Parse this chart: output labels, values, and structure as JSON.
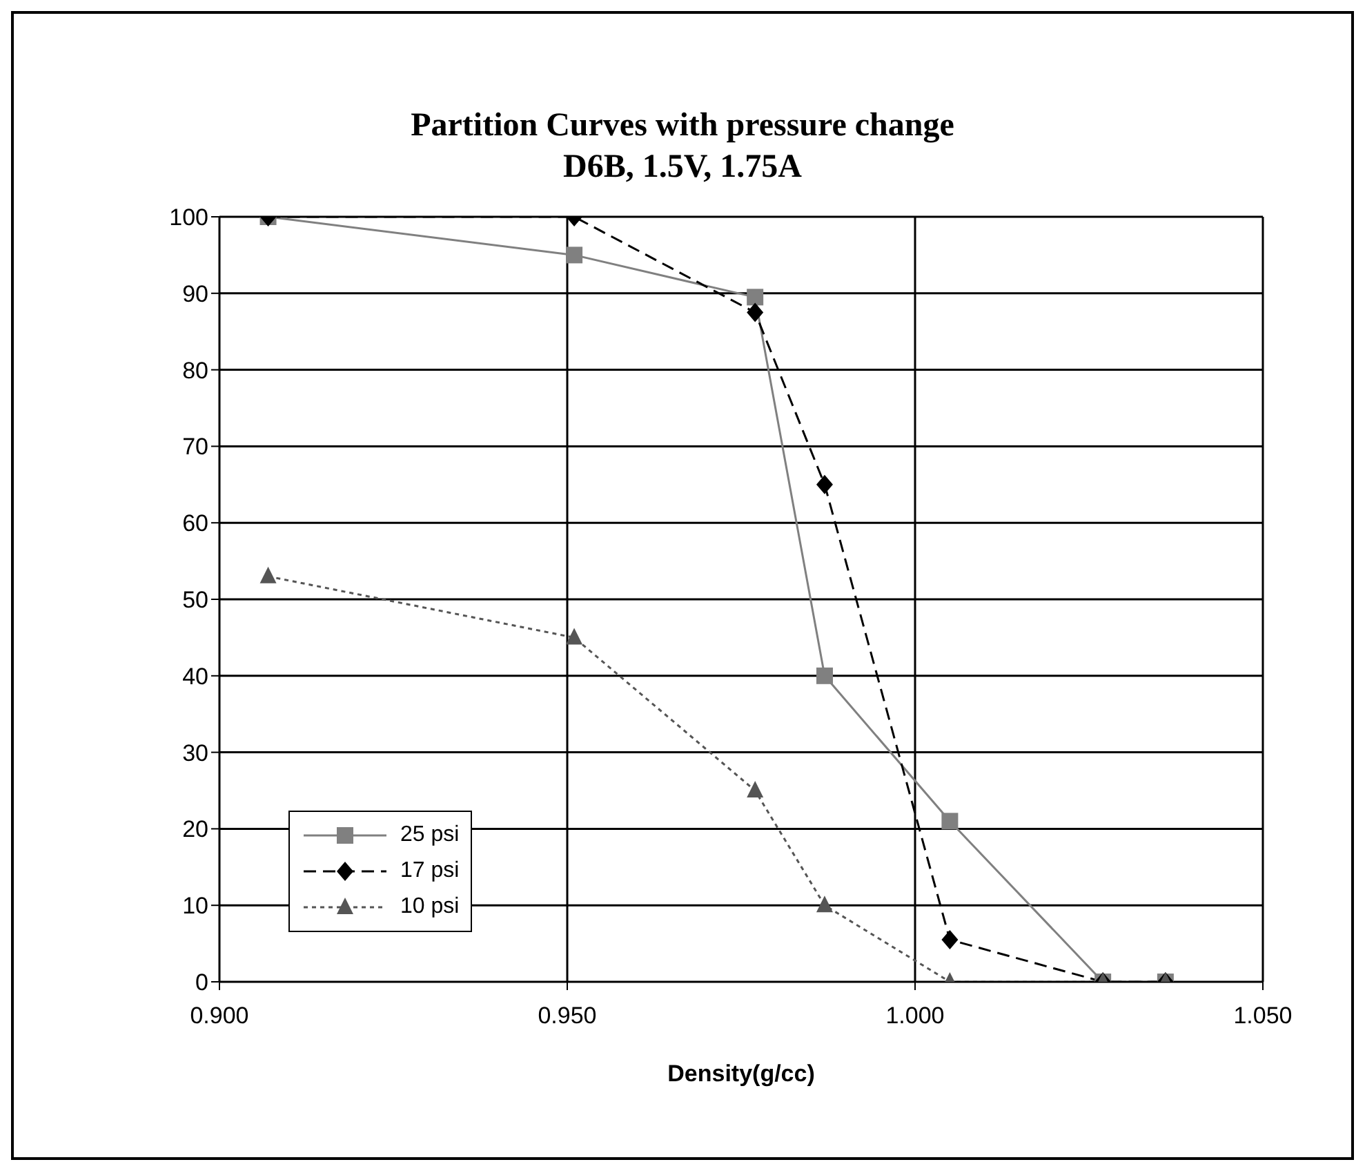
{
  "chart_data": {
    "type": "line",
    "title": "Partition Curves with pressure change",
    "subtitle": "D6B, 1.5V, 1.75A",
    "xlabel": "Density(g/cc)",
    "x": [
      0.907,
      0.951,
      0.977,
      0.987,
      1.005,
      1.027,
      1.036
    ],
    "series": [
      {
        "name": "25 psi",
        "color": "#808080",
        "marker": "square",
        "line_style": "solid",
        "values": [
          100,
          95,
          89.5,
          40,
          21,
          0,
          0
        ]
      },
      {
        "name": "17 psi",
        "color": "#000000",
        "marker": "diamond",
        "line_style": "dashed",
        "values": [
          100,
          100,
          87.5,
          65,
          5.5,
          0,
          0
        ]
      },
      {
        "name": "10 psi",
        "color": "#555555",
        "marker": "triangle",
        "line_style": "dotted",
        "values": [
          53,
          45,
          25,
          10,
          0,
          0,
          0
        ]
      }
    ],
    "xlim": [
      0.9,
      1.05
    ],
    "xticks": [
      {
        "value": 0.9,
        "label": "0.900"
      },
      {
        "value": 0.95,
        "label": "0.950"
      },
      {
        "value": 1.0,
        "label": "1.000"
      },
      {
        "value": 1.05,
        "label": "1.050"
      }
    ],
    "ylim": [
      0,
      100
    ],
    "yticks": [
      0,
      10,
      20,
      30,
      40,
      50,
      60,
      70,
      80,
      90,
      100
    ],
    "grid": true,
    "legend": "bottom left"
  }
}
